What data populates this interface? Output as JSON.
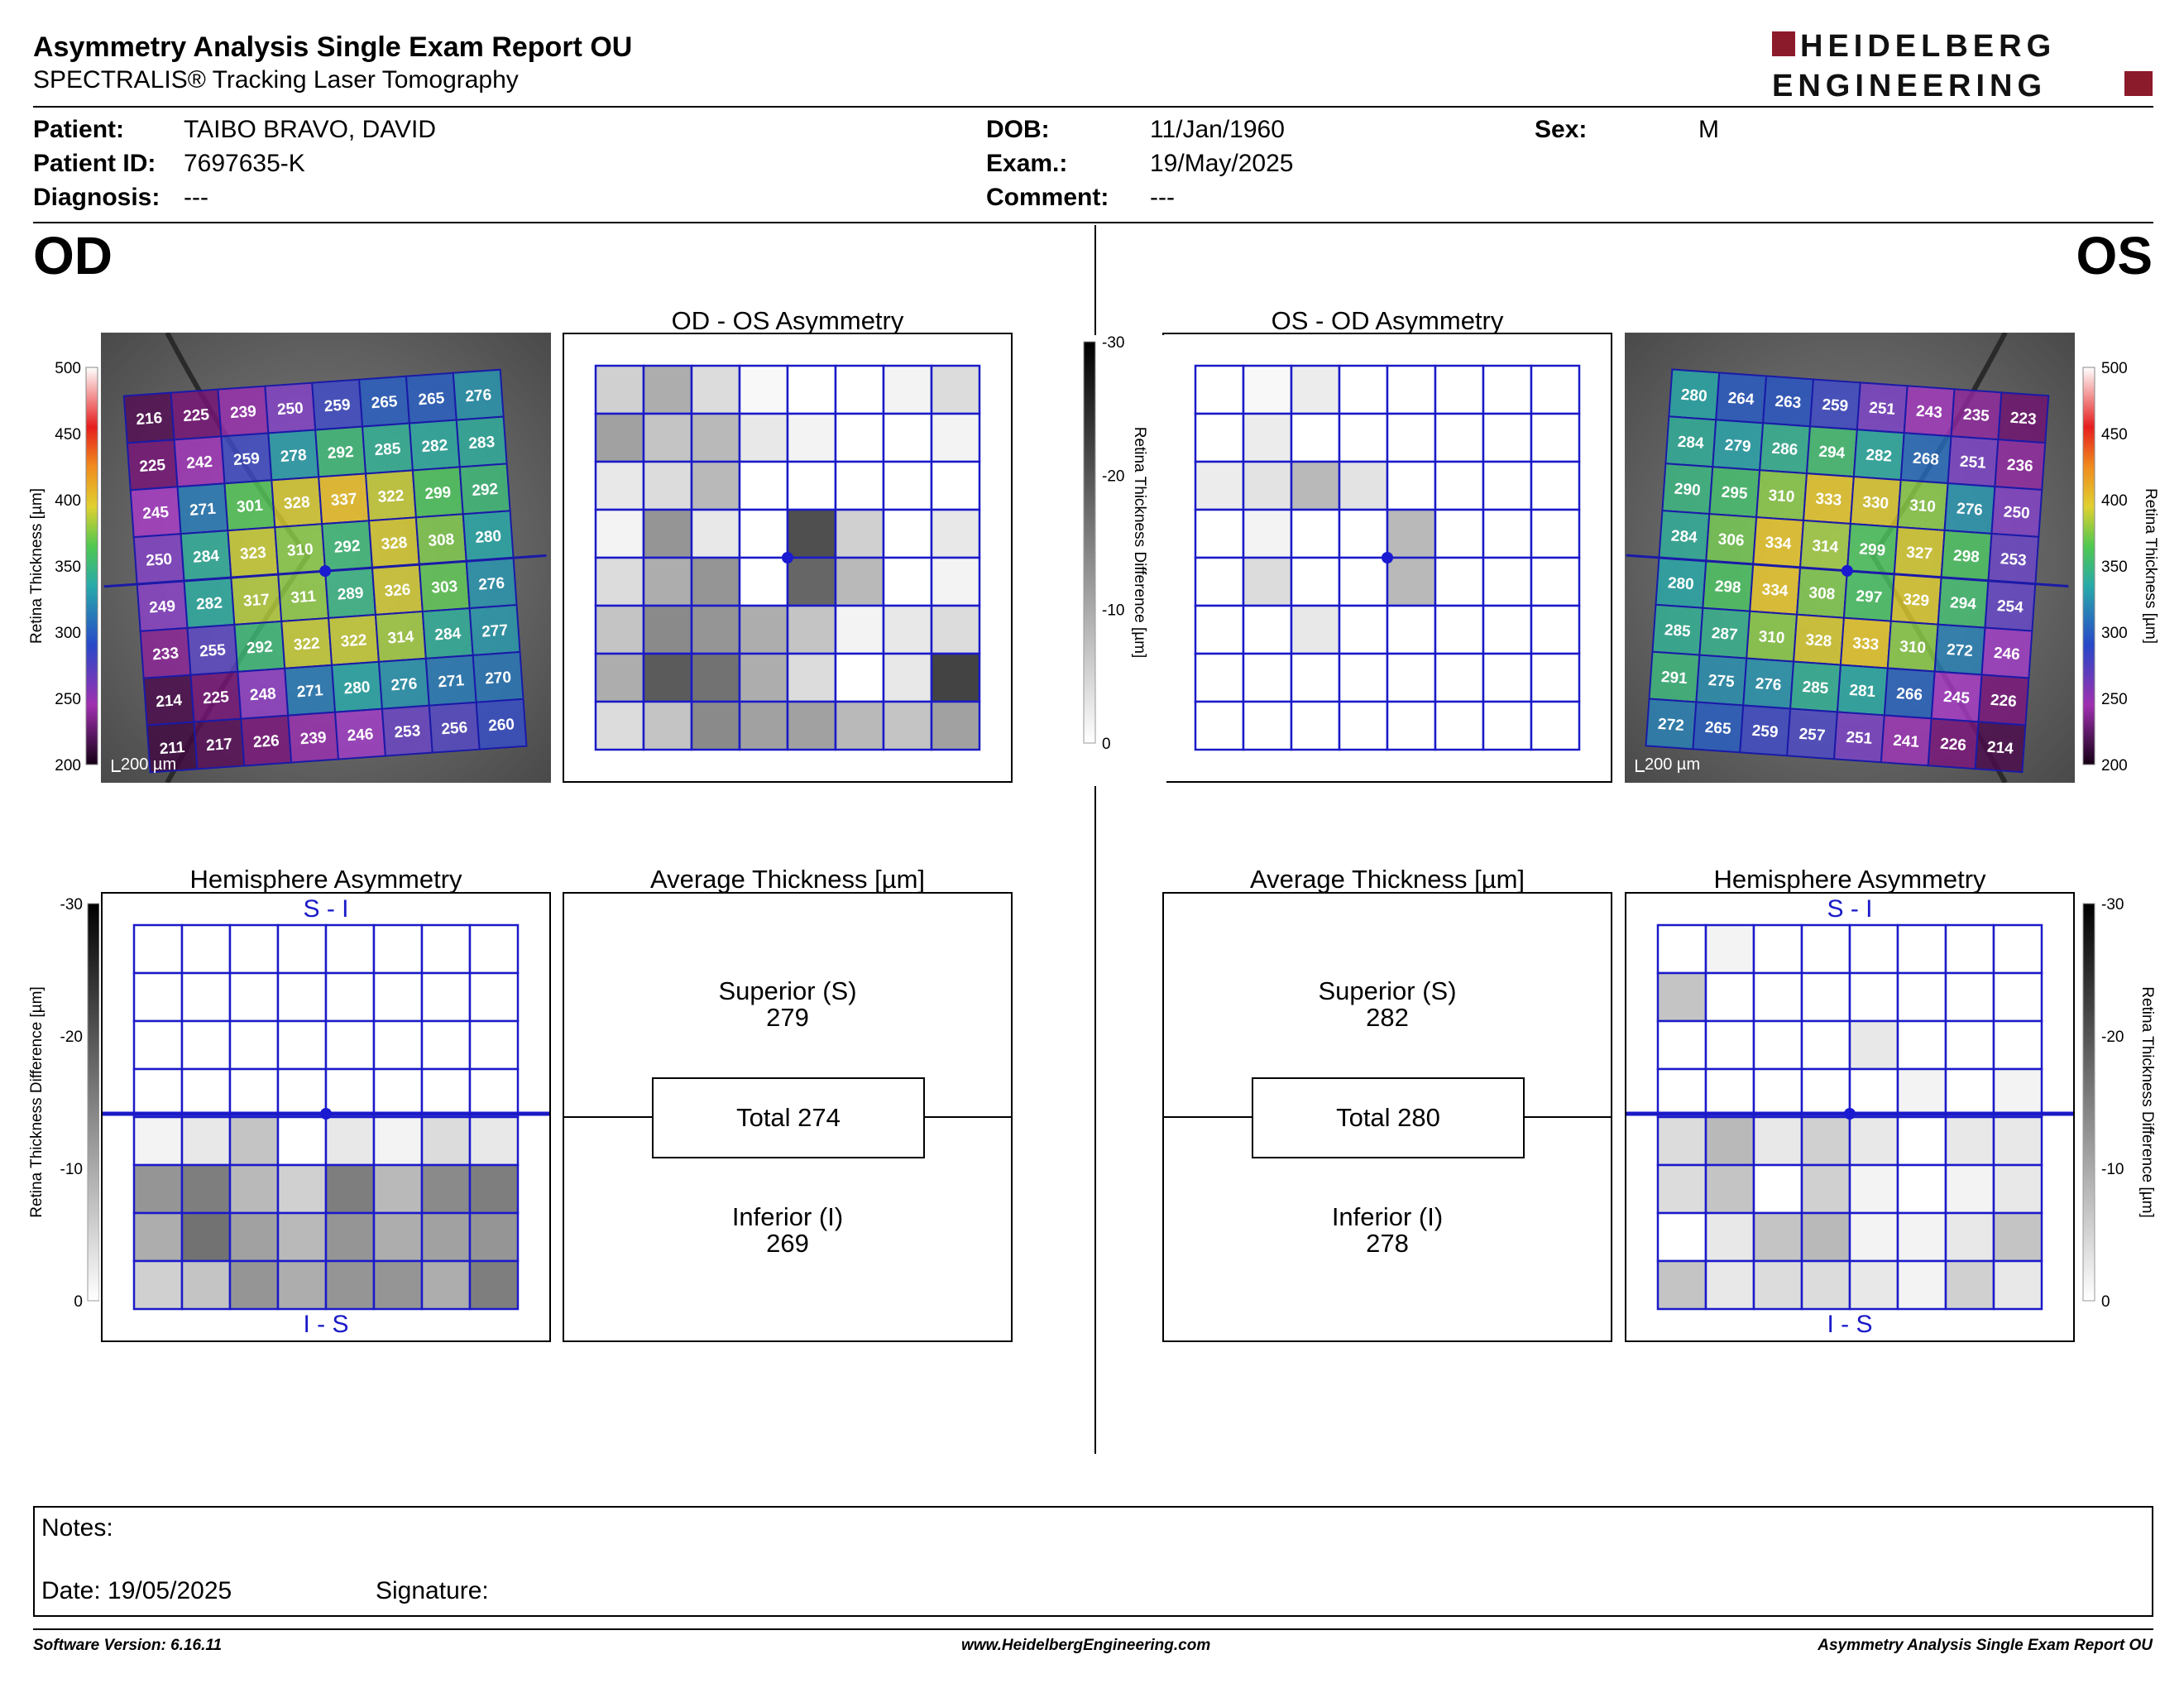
{
  "header": {
    "title": "Asymmetry Analysis Single Exam Report OU",
    "subtitle": "SPECTRALIS® Tracking Laser Tomography",
    "logo_line1": "HEIDELBERG",
    "logo_line2": "ENGINEERING",
    "brand_color": "#8b1a2b"
  },
  "patient": {
    "patient_label": "Patient:",
    "patient_value": "TAIBO BRAVO, DAVID",
    "id_label": "Patient ID:",
    "id_value": "7697635-K",
    "diagnosis_label": "Diagnosis:",
    "diagnosis_value": "---",
    "dob_label": "DOB:",
    "dob_value": "11/Jan/1960",
    "exam_label": "Exam.:",
    "exam_value": "19/May/2025",
    "comment_label": "Comment:",
    "comment_value": "---",
    "sex_label": "Sex:",
    "sex_value": "M"
  },
  "od": {
    "eye_label": "OD",
    "asym_title": "OD - OS Asymmetry",
    "hemi_title": "Hemisphere Asymmetry",
    "avg_title": "Average Thickness [µm]",
    "hemi_top": "S - I",
    "hemi_bottom": "I - S",
    "superior_label": "Superior (S)",
    "superior_value": "279",
    "total_label": "Total 274",
    "inferior_label": "Inferior (I)",
    "inferior_value": "269",
    "scale_label": "200 µm",
    "thickness": [
      [
        216,
        225,
        239,
        250,
        259,
        265,
        265,
        276
      ],
      [
        225,
        242,
        259,
        278,
        292,
        285,
        282,
        283
      ],
      [
        245,
        271,
        301,
        328,
        337,
        322,
        299,
        292
      ],
      [
        250,
        284,
        323,
        310,
        292,
        328,
        308,
        280
      ],
      [
        249,
        282,
        317,
        311,
        289,
        326,
        303,
        276
      ],
      [
        233,
        255,
        292,
        322,
        322,
        314,
        284,
        277
      ],
      [
        214,
        225,
        248,
        271,
        280,
        276,
        271,
        270
      ],
      [
        211,
        217,
        226,
        239,
        246,
        253,
        256,
        260
      ]
    ],
    "asym_gray": [
      [
        0.2,
        0.35,
        0.15,
        0.03,
        0,
        0,
        0.05,
        0.15
      ],
      [
        0.4,
        0.25,
        0.3,
        0.1,
        0.05,
        0,
        0,
        0.05
      ],
      [
        0.1,
        0.15,
        0.3,
        0,
        0,
        0,
        0,
        0
      ],
      [
        0.05,
        0.45,
        0.1,
        0,
        0.75,
        0.2,
        0,
        0.1
      ],
      [
        0.15,
        0.35,
        0.45,
        0,
        0.65,
        0.3,
        0,
        0.05
      ],
      [
        0.25,
        0.5,
        0.45,
        0.35,
        0.25,
        0.05,
        0.1,
        0.15
      ],
      [
        0.35,
        0.7,
        0.6,
        0.35,
        0.15,
        0,
        0.1,
        0.8
      ],
      [
        0.15,
        0.25,
        0.5,
        0.4,
        0.4,
        0.3,
        0.25,
        0.4
      ]
    ],
    "hemi_gray": [
      [
        0,
        0,
        0,
        0,
        0,
        0,
        0,
        0
      ],
      [
        0,
        0,
        0,
        0,
        0,
        0,
        0,
        0
      ],
      [
        0,
        0,
        0,
        0,
        0,
        0,
        0,
        0
      ],
      [
        0,
        0,
        0,
        0,
        0,
        0,
        0,
        0
      ],
      [
        0.05,
        0.1,
        0.25,
        0,
        0.1,
        0.05,
        0.15,
        0.1
      ],
      [
        0.45,
        0.55,
        0.3,
        0.2,
        0.55,
        0.3,
        0.5,
        0.55
      ],
      [
        0.35,
        0.6,
        0.4,
        0.3,
        0.45,
        0.35,
        0.4,
        0.45
      ],
      [
        0.2,
        0.25,
        0.45,
        0.35,
        0.45,
        0.45,
        0.35,
        0.55
      ]
    ]
  },
  "os": {
    "eye_label": "OS",
    "asym_title": "OS - OD Asymmetry",
    "hemi_title": "Hemisphere Asymmetry",
    "avg_title": "Average Thickness [µm]",
    "hemi_top": "S - I",
    "hemi_bottom": "I - S",
    "superior_label": "Superior (S)",
    "superior_value": "282",
    "total_label": "Total 280",
    "inferior_label": "Inferior (I)",
    "inferior_value": "278",
    "scale_label": "200 µm",
    "thickness": [
      [
        280,
        264,
        263,
        259,
        251,
        243,
        235,
        223
      ],
      [
        284,
        279,
        286,
        294,
        282,
        268,
        251,
        236
      ],
      [
        290,
        295,
        310,
        333,
        330,
        310,
        276,
        250
      ],
      [
        284,
        306,
        334,
        314,
        299,
        327,
        298,
        253
      ],
      [
        280,
        298,
        334,
        308,
        297,
        329,
        294,
        254
      ],
      [
        285,
        287,
        310,
        328,
        333,
        310,
        272,
        246
      ],
      [
        291,
        275,
        276,
        285,
        281,
        266,
        245,
        226
      ],
      [
        272,
        265,
        259,
        257,
        251,
        241,
        226,
        214
      ]
    ],
    "asym_gray": [
      [
        0,
        0.03,
        0.08,
        0,
        0,
        0,
        0,
        0
      ],
      [
        0,
        0.08,
        0,
        0,
        0,
        0,
        0,
        0
      ],
      [
        0.08,
        0.12,
        0.3,
        0.12,
        0,
        0,
        0,
        0
      ],
      [
        0,
        0.05,
        0,
        0,
        0.3,
        0,
        0,
        0
      ],
      [
        0,
        0.15,
        0,
        0,
        0.3,
        0,
        0,
        0
      ],
      [
        0,
        0,
        0.1,
        0,
        0,
        0,
        0,
        0
      ],
      [
        0,
        0,
        0,
        0,
        0,
        0,
        0,
        0
      ],
      [
        0,
        0,
        0,
        0,
        0,
        0,
        0,
        0
      ]
    ],
    "hemi_gray": [
      [
        0,
        0.05,
        0,
        0,
        0,
        0,
        0,
        0
      ],
      [
        0.25,
        0,
        0,
        0,
        0,
        0,
        0,
        0
      ],
      [
        0,
        0,
        0,
        0,
        0.1,
        0,
        0,
        0
      ],
      [
        0,
        0,
        0,
        0,
        0,
        0.05,
        0,
        0.05
      ],
      [
        0.15,
        0.3,
        0.1,
        0.2,
        0.1,
        0,
        0.1,
        0.1
      ],
      [
        0.15,
        0.25,
        0,
        0.2,
        0.05,
        0,
        0.05,
        0.1
      ],
      [
        0,
        0.1,
        0.25,
        0.3,
        0.05,
        0.05,
        0.1,
        0.25
      ],
      [
        0.25,
        0.1,
        0.15,
        0.15,
        0.1,
        0.05,
        0.2,
        0.1
      ]
    ]
  },
  "scales": {
    "thickness_title": "Retina Thickness [µm]",
    "thickness_ticks": [
      "500",
      "450",
      "400",
      "350",
      "300",
      "250",
      "200"
    ],
    "diff_title": "Retina Thickness Difference [µm]",
    "diff_ticks": [
      "-30",
      "-20",
      "-10",
      "0"
    ]
  },
  "notes": {
    "notes_label": "Notes:",
    "date_label": "Date: 19/05/2025",
    "signature_label": "Signature:"
  },
  "footer": {
    "software": "Software Version: 6.16.11",
    "website": "www.HeidelbergEngineering.com",
    "report": "Asymmetry Analysis Single Exam Report OU"
  }
}
